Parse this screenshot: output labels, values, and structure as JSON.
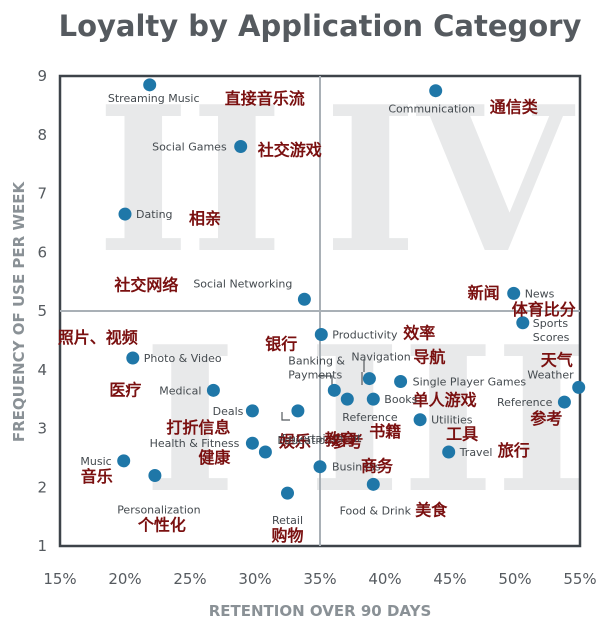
{
  "chart_data": {
    "type": "scatter",
    "title": "Loyalty by Application Category",
    "xlabel": "RETENTION OVER 90 DAYS",
    "ylabel": "FREQUENCY OF USE PER WEEK",
    "xlim": [
      15,
      55
    ],
    "ylim": [
      1,
      9
    ],
    "x_ticks": [
      "15%",
      "20%",
      "25%",
      "30%",
      "35%",
      "40%",
      "45%",
      "50%",
      "55%"
    ],
    "y_ticks": [
      "1",
      "2",
      "3",
      "4",
      "5",
      "6",
      "7",
      "8",
      "9"
    ],
    "divider_x": 35,
    "divider_y": 5,
    "quadrant_labels": [
      "II",
      "IV",
      "I",
      "III"
    ],
    "point_color": "#1f77a8",
    "points": [
      {
        "name": "Streaming Music",
        "zh": "直接音乐流",
        "x": 21.9,
        "y": 8.85
      },
      {
        "name": "Communication",
        "zh": "通信类",
        "x": 43.9,
        "y": 8.75
      },
      {
        "name": "Social Games",
        "zh": "社交游戏",
        "x": 28.9,
        "y": 7.8
      },
      {
        "name": "Dating",
        "zh": "相亲",
        "x": 20.0,
        "y": 6.65
      },
      {
        "name": "Social Networking",
        "zh": "社交网络",
        "x": 33.8,
        "y": 5.2
      },
      {
        "name": "News",
        "zh": "新闻",
        "x": 49.9,
        "y": 5.3
      },
      {
        "name": "Sports Scores",
        "zh": "体育比分",
        "x": 50.6,
        "y": 4.8
      },
      {
        "name": "Productivity",
        "zh": "效率",
        "x": 35.1,
        "y": 4.6
      },
      {
        "name": "Photo & Video",
        "zh": "照片、视频",
        "x": 20.6,
        "y": 4.2
      },
      {
        "name": "Navigation",
        "zh": "导航",
        "x": 38.8,
        "y": 3.85
      },
      {
        "name": "Single Player Games",
        "zh": "单人游戏",
        "x": 41.2,
        "y": 3.8
      },
      {
        "name": "Weather",
        "zh": "天气",
        "x": 54.9,
        "y": 3.7
      },
      {
        "name": "Medical",
        "zh": "医疗",
        "x": 26.8,
        "y": 3.65
      },
      {
        "name": "Banking & Payments",
        "zh": "银行",
        "x": 36.1,
        "y": 3.65
      },
      {
        "name": "Reference",
        "zh": "参考",
        "x": 37.1,
        "y": 3.5
      },
      {
        "name": "Books",
        "zh": "书籍",
        "x": 39.1,
        "y": 3.5
      },
      {
        "name": "Reference",
        "zh": "参考",
        "x": 53.8,
        "y": 3.45
      },
      {
        "name": "Deals",
        "zh": "打折信息",
        "x": 29.8,
        "y": 3.3
      },
      {
        "name": "Entertainment",
        "zh": "娱乐",
        "x": 33.3,
        "y": 3.3
      },
      {
        "name": "Utilities",
        "zh": "工具",
        "x": 42.7,
        "y": 3.15
      },
      {
        "name": "Health & Fitness",
        "zh": "健康",
        "x": 29.8,
        "y": 2.75
      },
      {
        "name": "Education",
        "zh": "教育",
        "x": 30.8,
        "y": 2.6
      },
      {
        "name": "Travel",
        "zh": "旅行",
        "x": 44.9,
        "y": 2.6
      },
      {
        "name": "Music",
        "zh": "音乐",
        "x": 19.9,
        "y": 2.45
      },
      {
        "name": "Business",
        "zh": "商务",
        "x": 35.0,
        "y": 2.35
      },
      {
        "name": "Personalization",
        "zh": "个性化",
        "x": 22.3,
        "y": 2.2
      },
      {
        "name": "Food & Drink",
        "zh": "美食",
        "x": 39.1,
        "y": 2.05
      },
      {
        "name": "Retail",
        "zh": "购物",
        "x": 32.5,
        "y": 1.9
      }
    ]
  }
}
